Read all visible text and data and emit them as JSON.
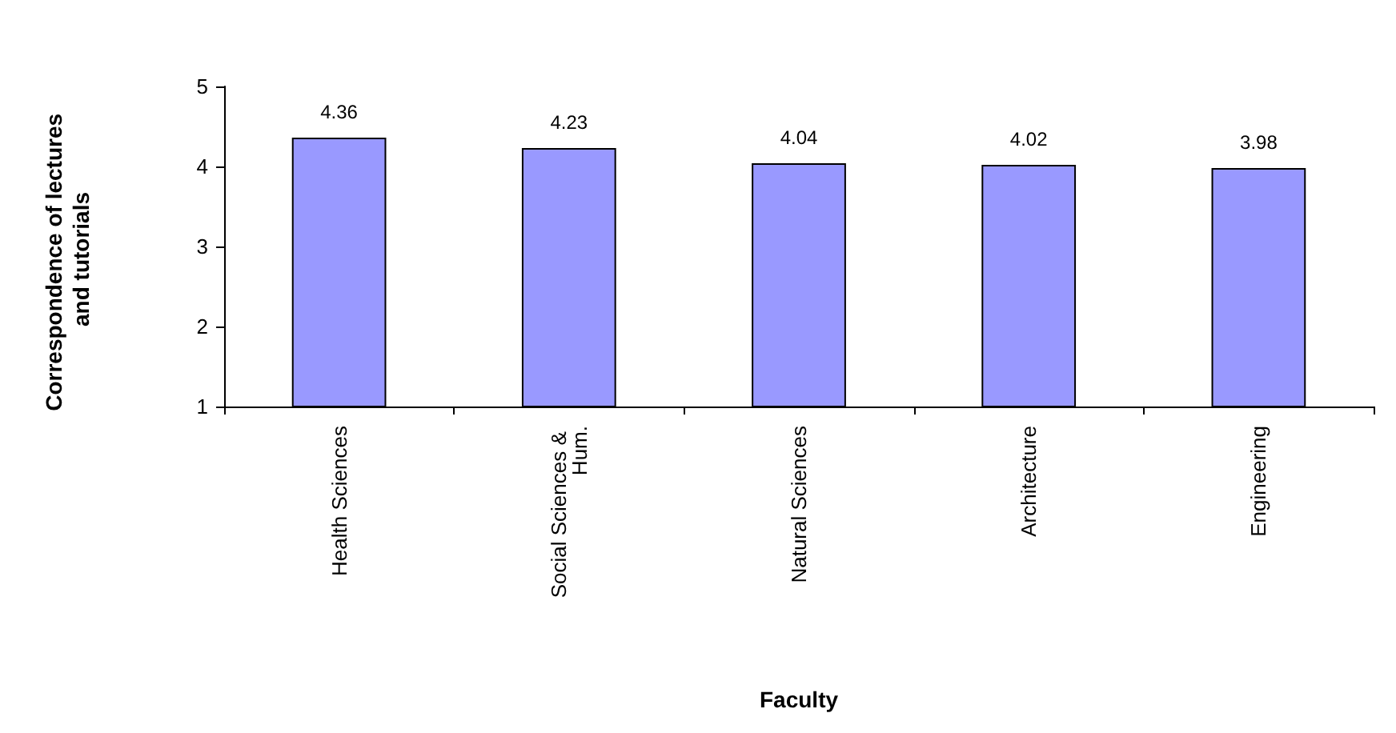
{
  "chart_data": {
    "type": "bar",
    "xlabel": "Faculty",
    "ylabel": "Correspondence of lectures and tutorials",
    "categories": [
      "Health Sciences",
      "Social Sciences & Hum.",
      "Natural Sciences",
      "Architecture",
      "Engineering"
    ],
    "values": [
      4.36,
      4.23,
      4.04,
      4.02,
      3.98
    ],
    "color": "#9999ff",
    "ylim": [
      1,
      5
    ],
    "yticks": [
      1,
      2,
      3,
      4,
      5
    ],
    "data_labels": true,
    "grid": false
  }
}
